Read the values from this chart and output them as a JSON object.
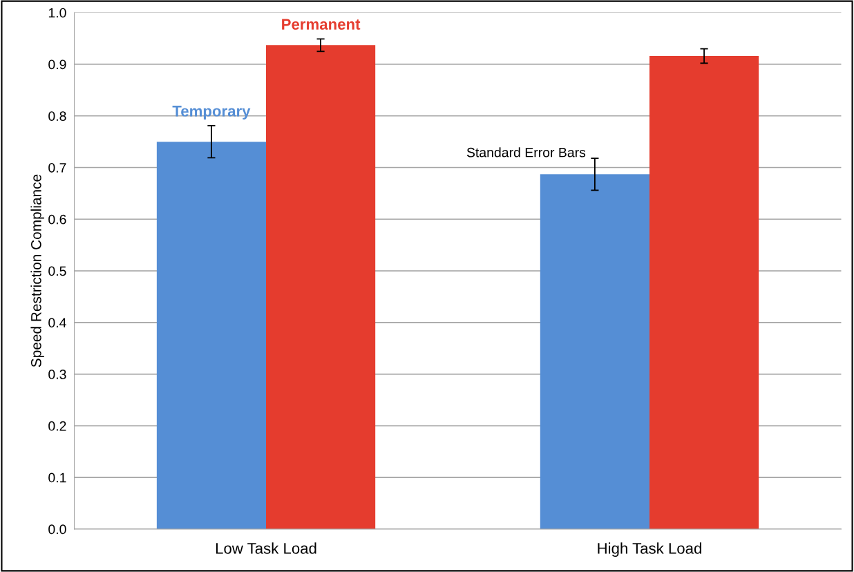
{
  "chart_data": {
    "type": "bar",
    "ylabel": "Speed Restriction Compliance",
    "categories": [
      "Low Task Load",
      "High Task Load"
    ],
    "series": [
      {
        "name": "Temporary",
        "color": "#558ed5",
        "values": [
          0.75,
          0.687
        ],
        "errors": [
          0.031,
          0.031
        ]
      },
      {
        "name": "Permanent",
        "color": "#e53c2e",
        "values": [
          0.937,
          0.916
        ],
        "errors": [
          0.012,
          0.014
        ]
      }
    ],
    "annotations": [
      "Standard Error Bars"
    ],
    "ylim": [
      0,
      1.0
    ],
    "yticks": [
      {
        "value": 0,
        "label": "0.0"
      },
      0.1,
      0.2,
      0.3,
      0.4,
      0.5,
      0.6,
      0.7,
      0.8,
      0.9,
      {
        "value": 1.0,
        "label": "1.0"
      }
    ],
    "grid": "y",
    "legend": false
  }
}
